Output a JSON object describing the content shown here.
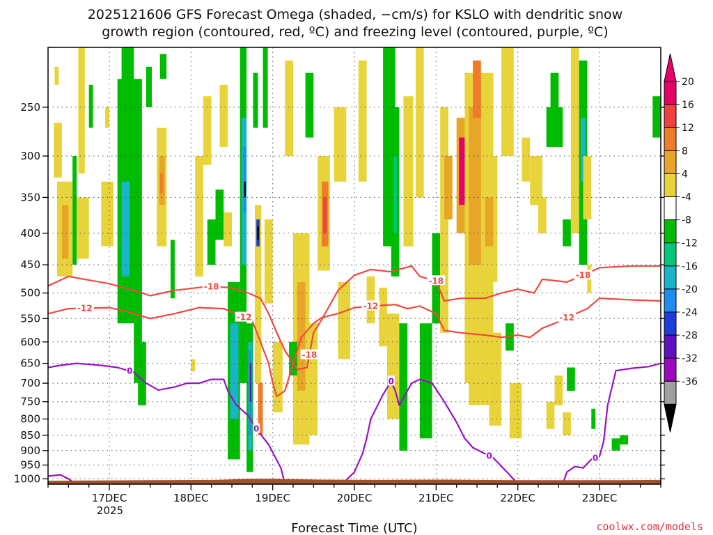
{
  "title": {
    "line1": "2025121606 GFS Forecast Omega (shaded, −cm/s) for KSLO with dendritic snow",
    "line2": "growth region (contoured, red, ºC) and freezing level (contoured, purple, ºC)"
  },
  "credit": "coolwx.com/models",
  "colors": {
    "isotherm_dgz": "#f0483e",
    "freezing_level": "#9a10c8",
    "ground": "#a0522d",
    "grid": "#555555"
  },
  "chart_data": {
    "type": "heatmap",
    "title": "2025121606 GFS Forecast Omega (shaded, −cm/s) for KSLO with dendritic snow growth region (contoured, red, ºC) and freezing level (contoured, purple, ºC)",
    "xlabel": "Forecast Time (UTC)",
    "ylabel": "",
    "x_axis": {
      "ticks": [
        "17DEC",
        "18DEC",
        "19DEC",
        "20DEC",
        "21DEC",
        "22DEC",
        "23DEC"
      ],
      "year_label": "2025",
      "range_days": [
        16.25,
        23.75
      ]
    },
    "y_axis": {
      "scale": "log-pressure",
      "inverted": true,
      "ticks": [
        250,
        300,
        350,
        400,
        450,
        500,
        550,
        600,
        650,
        700,
        750,
        800,
        850,
        900,
        950,
        1000
      ],
      "range_hpa": [
        200,
        1020
      ]
    },
    "grid": true,
    "colorbar": {
      "labels": [
        "20",
        "16",
        "12",
        "8",
        "4",
        "-4",
        "-8",
        "-12",
        "-16",
        "-20",
        "-24",
        "-28",
        "-32",
        "-36"
      ],
      "colors": [
        "#e8006a",
        "#f04040",
        "#ee7c28",
        "#e8a628",
        "#e8d43a",
        "#ffffff",
        "#00bc00",
        "#00c878",
        "#18b4c8",
        "#1e8cf0",
        "#1c3cdc",
        "#6010c0",
        "#9c08c0",
        "#a0a0a0"
      ],
      "over_color": "#e8006a",
      "under_color": "#000000"
    },
    "contours": [
      {
        "name": "-18",
        "label": "-18",
        "color": "#f0483e",
        "points": [
          [
            16.25,
            487
          ],
          [
            16.5,
            470
          ],
          [
            17.0,
            483
          ],
          [
            17.3,
            495
          ],
          [
            17.5,
            505
          ],
          [
            17.8,
            495
          ],
          [
            18.2,
            488
          ],
          [
            18.5,
            490
          ],
          [
            18.7,
            500
          ],
          [
            18.85,
            510
          ],
          [
            18.95,
            540
          ],
          [
            19.05,
            580
          ],
          [
            19.15,
            620
          ],
          [
            19.3,
            665
          ],
          [
            19.42,
            660
          ],
          [
            19.5,
            580
          ],
          [
            19.6,
            552
          ],
          [
            19.8,
            495
          ],
          [
            20.0,
            468
          ],
          [
            20.2,
            458
          ],
          [
            20.45,
            462
          ],
          [
            20.7,
            452
          ],
          [
            20.8,
            470
          ],
          [
            21.0,
            478
          ],
          [
            21.1,
            515
          ],
          [
            21.3,
            510
          ],
          [
            21.6,
            510
          ],
          [
            21.8,
            500
          ],
          [
            22.0,
            493
          ],
          [
            22.2,
            500
          ],
          [
            22.3,
            475
          ],
          [
            22.6,
            480
          ],
          [
            22.85,
            465
          ],
          [
            23.0,
            455
          ],
          [
            23.4,
            452
          ],
          [
            23.75,
            452
          ]
        ]
      },
      {
        "name": "-12",
        "label": "-12",
        "color": "#f0483e",
        "points": [
          [
            16.25,
            540
          ],
          [
            16.5,
            530
          ],
          [
            17.0,
            528
          ],
          [
            17.2,
            535
          ],
          [
            17.5,
            550
          ],
          [
            17.8,
            540
          ],
          [
            18.1,
            528
          ],
          [
            18.4,
            530
          ],
          [
            18.55,
            540
          ],
          [
            18.75,
            555
          ],
          [
            18.85,
            600
          ],
          [
            18.95,
            650
          ],
          [
            19.0,
            700
          ],
          [
            19.05,
            735
          ],
          [
            19.15,
            720
          ],
          [
            19.25,
            650
          ],
          [
            19.35,
            590
          ],
          [
            19.5,
            560
          ],
          [
            19.6,
            548
          ],
          [
            19.8,
            540
          ],
          [
            20.0,
            528
          ],
          [
            20.2,
            525
          ],
          [
            20.5,
            522
          ],
          [
            20.65,
            530
          ],
          [
            20.8,
            525
          ],
          [
            21.0,
            540
          ],
          [
            21.1,
            575
          ],
          [
            21.3,
            580
          ],
          [
            21.6,
            585
          ],
          [
            21.8,
            590
          ],
          [
            22.0,
            585
          ],
          [
            22.15,
            590
          ],
          [
            22.3,
            570
          ],
          [
            22.45,
            560
          ],
          [
            22.6,
            548
          ],
          [
            22.85,
            530
          ],
          [
            23.0,
            510
          ],
          [
            23.4,
            513
          ],
          [
            23.75,
            515
          ]
        ]
      },
      {
        "name": "0",
        "label": "0",
        "color": "#9a10c8",
        "points": [
          [
            16.25,
            660
          ],
          [
            16.4,
            655
          ],
          [
            16.6,
            650
          ],
          [
            16.9,
            655
          ],
          [
            17.1,
            660
          ],
          [
            17.3,
            672
          ],
          [
            17.45,
            700
          ],
          [
            17.6,
            718
          ],
          [
            17.8,
            710
          ],
          [
            17.95,
            700
          ],
          [
            18.1,
            700
          ],
          [
            18.25,
            690
          ],
          [
            18.4,
            690
          ],
          [
            18.45,
            720
          ],
          [
            18.55,
            758
          ],
          [
            18.7,
            790
          ],
          [
            18.8,
            830
          ],
          [
            18.95,
            880
          ],
          [
            19.1,
            960
          ],
          [
            19.15,
            1020
          ]
        ]
      },
      {
        "name": "0",
        "label": "0",
        "color": "#9a10c8",
        "points": [
          [
            19.85,
            1020
          ],
          [
            20.0,
            975
          ],
          [
            20.1,
            910
          ],
          [
            20.15,
            860
          ],
          [
            20.2,
            800
          ],
          [
            20.35,
            730
          ],
          [
            20.45,
            695
          ],
          [
            20.5,
            720
          ],
          [
            20.55,
            760
          ],
          [
            20.6,
            740
          ],
          [
            20.7,
            700
          ],
          [
            20.8,
            690
          ],
          [
            20.95,
            700
          ],
          [
            21.1,
            750
          ],
          [
            21.25,
            810
          ],
          [
            21.35,
            860
          ],
          [
            21.45,
            890
          ],
          [
            21.7,
            925
          ],
          [
            21.9,
            985
          ],
          [
            22.0,
            1020
          ]
        ]
      },
      {
        "name": "0",
        "label": "0",
        "color": "#9a10c8",
        "points": [
          [
            22.55,
            1020
          ],
          [
            22.6,
            975
          ],
          [
            22.7,
            955
          ],
          [
            22.8,
            960
          ],
          [
            22.9,
            930
          ],
          [
            23.0,
            920
          ],
          [
            23.05,
            870
          ],
          [
            23.1,
            760
          ],
          [
            23.2,
            668
          ],
          [
            23.4,
            662
          ],
          [
            23.6,
            658
          ],
          [
            23.75,
            650
          ]
        ]
      },
      {
        "name": "0",
        "label": "0",
        "color": "#9a10c8",
        "points": [
          [
            16.25,
            990
          ],
          [
            16.4,
            985
          ],
          [
            16.5,
            1000
          ],
          [
            16.6,
            1020
          ]
        ]
      }
    ]
  }
}
